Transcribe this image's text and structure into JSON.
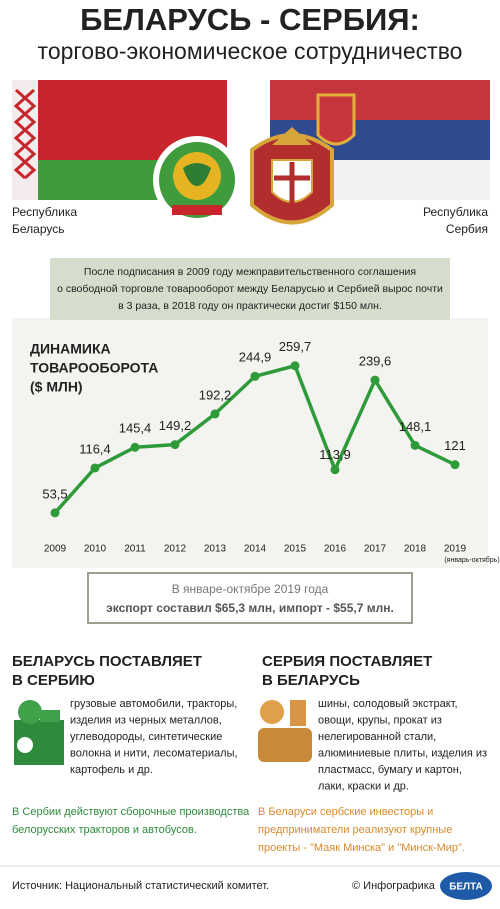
{
  "header": {
    "title": "БЕЛАРУСЬ - СЕРБИЯ:",
    "subtitle": "торгово-экономическое сотрудничество"
  },
  "flags": {
    "left": [
      "Республика",
      "Беларусь"
    ],
    "right": [
      "Республика",
      "Сербия"
    ]
  },
  "intro": {
    "lines": [
      "После подписания в 2009 году межправительственного соглашения",
      "о свободной торговле товарооборот между Беларусью и Сербией вырос почти",
      "в 3 раза, в 2018 году он практически достиг $150 млн."
    ]
  },
  "chart_data": {
    "type": "line",
    "title": [
      "ДИНАМИКА",
      "ТОВАРООБОРОТА",
      "($ МЛН)"
    ],
    "categories": [
      "2009",
      "2010",
      "2011",
      "2012",
      "2013",
      "2014",
      "2015",
      "2016",
      "2017",
      "2018",
      "2019"
    ],
    "x_note": "(январь-октябрь)",
    "values": [
      53.5,
      116.4,
      145.4,
      149.2,
      192.2,
      244.9,
      259.7,
      113.9,
      239.6,
      148.1,
      121
    ],
    "value_labels": [
      "53,5",
      "116,4",
      "145,4",
      "149,2",
      "192,2",
      "244,9",
      "259,7",
      "113,9",
      "239,6",
      "148,1",
      "121"
    ],
    "color": "#2e9a3a",
    "ylim": [
      0,
      300
    ]
  },
  "summary": {
    "heading": "В январе-октябре 2019 года",
    "text": "экспорт составил $65,3 млн, импорт - $55,7 млн."
  },
  "exports": {
    "title": [
      "БЕЛАРУСЬ ПОСТАВЛЯЕТ",
      "В СЕРБИЮ"
    ],
    "lines": [
      "грузовые автомобили, тракторы,",
      "изделия из черных металлов,",
      "углеводороды, синтетические",
      "волокна и нити, лесоматериалы,",
      "картофель и др."
    ]
  },
  "imports": {
    "title": [
      "СЕРБИЯ ПОСТАВЛЯЕТ",
      "В БЕЛАРУСЬ"
    ],
    "lines": [
      "шины, солодовый экстракт,",
      "овощи, крупы, прокат из",
      "нелегированной стали,",
      "алюминиевые плиты, изделия из",
      "пластмасс, бумагу и картон,",
      "лаки, краски и др."
    ]
  },
  "notes": {
    "left": [
      "В Сербии действуют сборочные производства",
      "белорусских тракторов и автобусов."
    ],
    "right": [
      "В Беларуси сербские инвесторы и",
      "предприниматели реализуют крупные",
      "проекты - \"Маяк Минска\" и \"Минск-Мир\"."
    ]
  },
  "footer": {
    "source": "Источник: Национальный статистический комитет.",
    "credit": "© Инфографика",
    "logo": "БЕЛТА"
  }
}
